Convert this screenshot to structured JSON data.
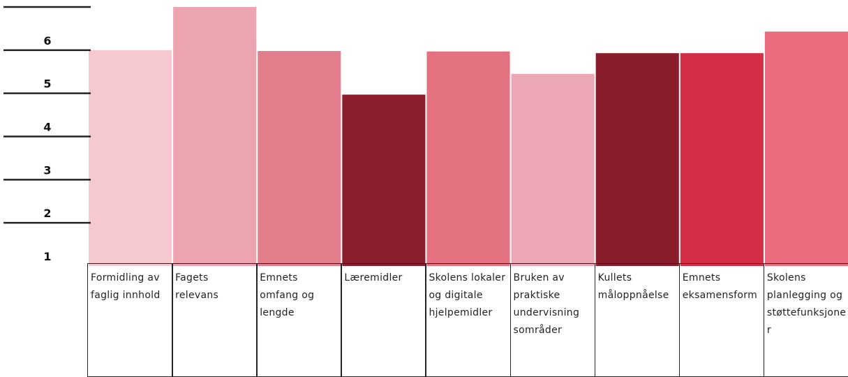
{
  "chart_data": {
    "type": "bar",
    "categories": [
      "Formidling av faglig innhold",
      "Fagets relevans",
      "Emnets omfang og lengde",
      "Læremidler",
      "Skolens lokaler og digitale hjelpemidler",
      "Bruken av praktiske undervisning sområder",
      "Kullets måloppnåelse",
      "Emnets eksamensform",
      "Skolens planlegging og støttefunksjoner"
    ],
    "values": [
      6.0,
      7.0,
      5.98,
      4.97,
      5.97,
      5.45,
      5.93,
      5.93,
      6.43
    ],
    "colors": [
      "#f5c9cf",
      "#eda4b1",
      "#e37e8d",
      "#8b1e2d",
      "#e4717f",
      "#eca8b4",
      "#8a1d2b",
      "#d42d47",
      "#e86b7e"
    ],
    "ylim": [
      1,
      7
    ],
    "yticks": [
      1,
      2,
      3,
      4,
      5,
      6
    ]
  }
}
